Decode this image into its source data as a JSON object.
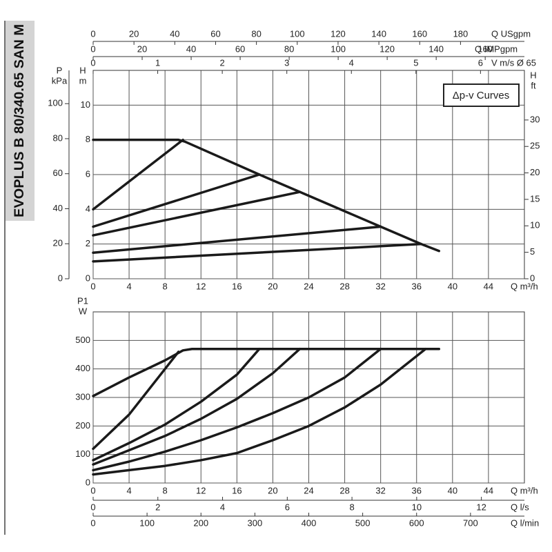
{
  "side_label": "EVOPLUS B 80/340.65 SAN M",
  "chart_data": [
    {
      "type": "line",
      "annotation": "Δp-v Curves",
      "color": "#1a1a1a",
      "grid": true,
      "xlabel": "Q m³/h",
      "xlim": [
        0,
        48
      ],
      "xticks": [
        0,
        4,
        8,
        12,
        16,
        20,
        24,
        28,
        32,
        36,
        40,
        44
      ],
      "ylabel": [
        "H",
        "m"
      ],
      "ylim": [
        0,
        12
      ],
      "yticks": [
        0,
        2,
        4,
        6,
        8,
        10
      ],
      "left_axis": {
        "label": [
          "P",
          "kPa"
        ],
        "lim": [
          0,
          119
        ],
        "ticks": [
          0,
          20,
          40,
          60,
          80,
          100
        ]
      },
      "right_axis": {
        "label": [
          "H",
          "ft"
        ],
        "lim": [
          0,
          39.37
        ],
        "ticks": [
          0,
          5,
          10,
          15,
          20,
          25,
          30
        ]
      },
      "top_axes": [
        {
          "label": "Q USgpm",
          "lim": [
            0,
            211.3
          ],
          "ticks": [
            0,
            20,
            40,
            60,
            80,
            100,
            120,
            140,
            160,
            180
          ]
        },
        {
          "label": "Q IMPgpm",
          "lim": [
            0,
            176
          ],
          "ticks": [
            0,
            20,
            40,
            60,
            80,
            100,
            120,
            140,
            160
          ]
        },
        {
          "label": "V m/s Ø 65",
          "lim": [
            0,
            6.68
          ],
          "ticks": [
            0,
            1,
            2,
            3,
            4,
            5,
            6
          ]
        }
      ],
      "series": [
        {
          "x": [
            0,
            9.5,
            10.2,
            18.5,
            23,
            32,
            36.5,
            38.5
          ],
          "values": [
            8,
            8,
            7.9,
            6,
            5,
            3,
            2,
            1.6
          ]
        },
        {
          "x": [
            0,
            10
          ],
          "values": [
            4,
            8
          ]
        },
        {
          "x": [
            0,
            18.5
          ],
          "values": [
            3,
            6
          ]
        },
        {
          "x": [
            0,
            23
          ],
          "values": [
            2.5,
            5
          ]
        },
        {
          "x": [
            0,
            32
          ],
          "values": [
            1.5,
            3
          ]
        },
        {
          "x": [
            0,
            36.5
          ],
          "values": [
            1,
            2
          ]
        }
      ]
    },
    {
      "type": "line",
      "color": "#1a1a1a",
      "grid": true,
      "xlabel": "Q m³/h",
      "xlim": [
        0,
        48
      ],
      "xticks": [
        0,
        4,
        8,
        12,
        16,
        20,
        24,
        28,
        32,
        36,
        40,
        44
      ],
      "ylabel": [
        "P1",
        "W"
      ],
      "ylim": [
        0,
        600
      ],
      "yticks": [
        0,
        100,
        200,
        300,
        400,
        500
      ],
      "bottom_axes": [
        {
          "label": "Q l/s",
          "lim": [
            0,
            13.33
          ],
          "ticks": [
            0,
            2,
            4,
            6,
            8,
            10,
            12
          ]
        },
        {
          "label": "Q l/min",
          "lim": [
            0,
            800
          ],
          "ticks": [
            0,
            100,
            200,
            300,
            400,
            500,
            600,
            700
          ]
        }
      ],
      "series": [
        {
          "x": [
            0,
            4,
            8,
            10,
            11,
            38.5
          ],
          "values": [
            305,
            370,
            430,
            465,
            470,
            470
          ]
        },
        {
          "x": [
            0,
            4,
            8,
            9.5
          ],
          "values": [
            120,
            240,
            400,
            460
          ]
        },
        {
          "x": [
            0,
            4,
            8,
            12,
            16,
            18.5
          ],
          "values": [
            80,
            140,
            205,
            285,
            380,
            470
          ]
        },
        {
          "x": [
            0,
            4,
            8,
            12,
            16,
            20,
            23
          ],
          "values": [
            65,
            115,
            165,
            225,
            295,
            385,
            470
          ]
        },
        {
          "x": [
            0,
            4,
            8,
            12,
            16,
            20,
            24,
            28,
            32
          ],
          "values": [
            45,
            75,
            110,
            150,
            195,
            245,
            300,
            370,
            470
          ]
        },
        {
          "x": [
            0,
            4,
            8,
            12,
            16,
            20,
            24,
            28,
            32,
            37
          ],
          "values": [
            30,
            45,
            60,
            80,
            105,
            150,
            200,
            265,
            345,
            470
          ]
        }
      ]
    }
  ]
}
